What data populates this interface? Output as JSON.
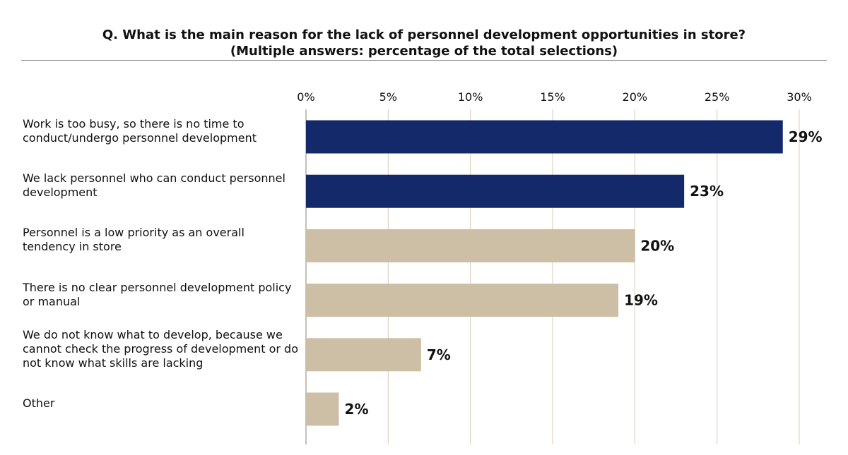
{
  "chart_data": {
    "type": "bar",
    "orientation": "horizontal",
    "title": "Q. What is the main reason for the lack of personnel development opportunities in store?",
    "subtitle": "(Multiple answers: percentage of the total selections)",
    "categories": [
      "Work is too busy, so there is no time to conduct/undergo personnel development",
      "We lack personnel who can conduct personnel development",
      "Personnel is a low priority as an overall tendency in store",
      "There is no clear personnel development policy or manual",
      "We do not know what to develop, because we cannot check the progress of development or do not know what skills are lacking",
      "Other"
    ],
    "values": [
      29,
      23,
      20,
      19,
      7,
      2
    ],
    "data_labels": [
      "29%",
      "23%",
      "20%",
      "19%",
      "7%",
      "2%"
    ],
    "bar_colors": [
      "#13296a",
      "#13296a",
      "#cdbfa5",
      "#cdbfa5",
      "#cdbfa5",
      "#cdbfa5"
    ],
    "xlim": [
      0,
      30
    ],
    "xticks": [
      0,
      5,
      10,
      15,
      20,
      25,
      30
    ],
    "xtick_labels": [
      "0%",
      "5%",
      "10%",
      "15%",
      "20%",
      "25%",
      "30%"
    ],
    "xaxis_position": "top",
    "grid": true,
    "grid_color": "#d9ccb2"
  }
}
